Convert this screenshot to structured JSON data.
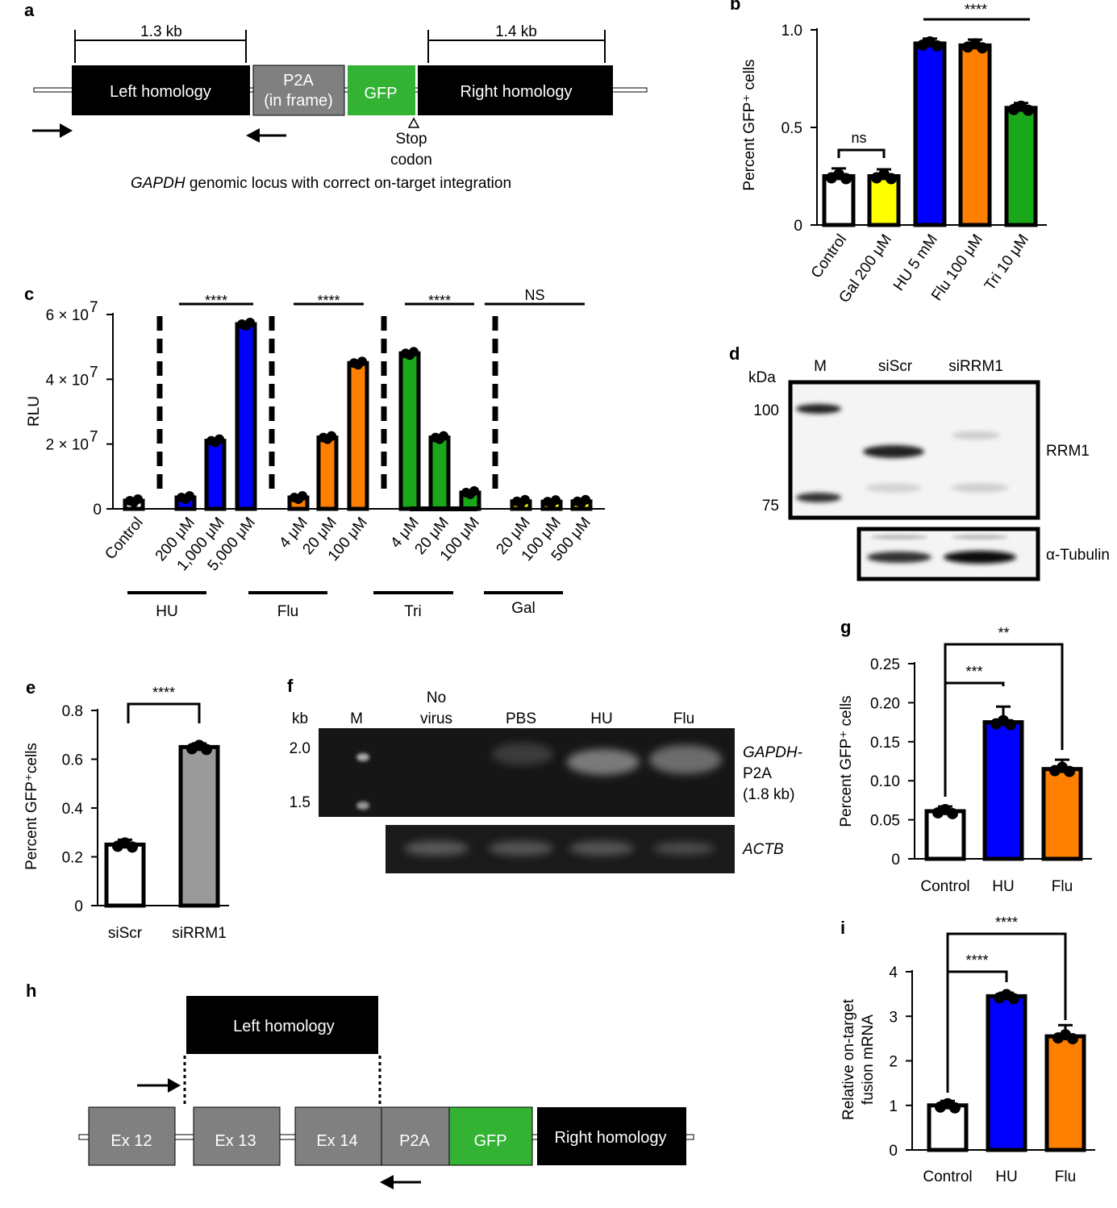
{
  "colors": {
    "white": "#ffffff",
    "yellow": "#ffff00",
    "blue": "#0000ff",
    "orange": "#ff8000",
    "green": "#1aa81a",
    "grey": "#9a9a9a",
    "black": "#000000",
    "box_grey": "#808080",
    "gfp_green": "#33b233"
  },
  "panel_a": {
    "label": "a",
    "left_size": "1.3 kb",
    "right_size": "1.4 kb",
    "left": "Left homology",
    "p2a_1": "P2A",
    "p2a_2": "(in frame)",
    "gfp": "GFP",
    "right": "Right homology",
    "stop_1": "Stop",
    "stop_2": "codon",
    "caption_italic": "GAPDH",
    "caption_rest": " genomic locus with correct on-target integration"
  },
  "panel_d": {
    "label": "d",
    "kda": "kDa",
    "lanes": [
      "M",
      "siScr",
      "siRRM1"
    ],
    "mw": [
      "100",
      "75"
    ],
    "rrm1": "RRM1",
    "tubulin": "α-Tubulin"
  },
  "panel_f": {
    "label": "f",
    "kb": "kb",
    "lanes": [
      "M",
      "No",
      "virus",
      "PBS",
      "HU",
      "Flu"
    ],
    "mw": [
      "2.0",
      "1.5"
    ],
    "band_1": "GAPDH-",
    "band_2": "P2A",
    "band_3": "(1.8 kb)",
    "actb": "ACTB"
  },
  "panel_h": {
    "label": "h",
    "left": "Left homology",
    "ex12": "Ex 12",
    "ex13": "Ex 13",
    "ex14": "Ex 14",
    "p2a": "P2A",
    "gfp": "GFP",
    "right": "Right homology"
  },
  "chart_data": [
    {
      "id": "b",
      "label": "b",
      "type": "bar",
      "ylabel": "Percent GFP⁺ cells",
      "ylim": [
        0,
        1.0
      ],
      "yticks": [
        0,
        0.5,
        1.0
      ],
      "ytick_labels": [
        "0",
        "0.5",
        "1.0"
      ],
      "categories": [
        "Control",
        "Gal 200 μM",
        "HU 5 mM",
        "Flu 100 μM",
        "Tri 10 μM"
      ],
      "values": [
        0.25,
        0.25,
        0.93,
        0.92,
        0.6
      ],
      "errors": [
        0.04,
        0.035,
        0.025,
        0.03,
        0.025
      ],
      "fill": [
        "#ffffff",
        "#ffff00",
        "#0000ff",
        "#ff8000",
        "#1aa81a"
      ],
      "annotations": [
        "ns",
        "****"
      ]
    },
    {
      "id": "c",
      "label": "c",
      "type": "bar",
      "ylabel": "RLU",
      "ylim": [
        0,
        60000000
      ],
      "yticks": [
        0,
        20000000,
        40000000,
        60000000
      ],
      "ytick_labels": [
        "0",
        "2 × 10",
        "4 × 10",
        "6 × 10"
      ],
      "ytick_exp": "7",
      "categories": [
        "Control",
        "200 μM",
        "1,000 μM",
        "5,000 μM",
        "4 μM",
        "20 μM",
        "100 μM",
        "4 μM",
        "20 μM",
        "100 μM",
        "20 μM",
        "100 μM",
        "500 μM"
      ],
      "values": [
        2500000,
        3500000,
        21000000,
        57000000,
        3500000,
        22000000,
        45000000,
        48000000,
        22000000,
        5000000,
        2300000,
        2200000,
        2300000
      ],
      "fill": [
        "#ffffff",
        "#0000ff",
        "#0000ff",
        "#0000ff",
        "#ff8000",
        "#ff8000",
        "#ff8000",
        "#1aa81a",
        "#1aa81a",
        "#1aa81a",
        "#ffff00",
        "#ffff00",
        "#ffff00"
      ],
      "groups": [
        "HU",
        "Flu",
        "Tri",
        "Gal"
      ],
      "annotations": [
        "****",
        "****",
        "****",
        "NS"
      ]
    },
    {
      "id": "e",
      "label": "e",
      "type": "bar",
      "ylabel": "Percent GFP⁺cells",
      "ylim": [
        0,
        0.8
      ],
      "yticks": [
        0,
        0.2,
        0.4,
        0.6,
        0.8
      ],
      "ytick_labels": [
        "0",
        "0.2",
        "0.4",
        "0.6",
        "0.8"
      ],
      "categories": [
        "siScr",
        "siRRM1"
      ],
      "values": [
        0.25,
        0.65
      ],
      "errors": [
        0.02,
        0.015
      ],
      "fill": [
        "#ffffff",
        "#9a9a9a"
      ],
      "annotations": [
        "****"
      ]
    },
    {
      "id": "g",
      "label": "g",
      "type": "bar",
      "ylabel": "Percent GFP⁺ cells",
      "ylim": [
        0,
        0.25
      ],
      "yticks": [
        0,
        0.05,
        0.1,
        0.15,
        0.2,
        0.25
      ],
      "ytick_labels": [
        "0",
        "0.05",
        "0.10",
        "0.15",
        "0.20",
        "0.25"
      ],
      "categories": [
        "Control",
        "HU",
        "Flu"
      ],
      "values": [
        0.061,
        0.175,
        0.115
      ],
      "errors": [
        0.006,
        0.02,
        0.012
      ],
      "fill": [
        "#ffffff",
        "#0000ff",
        "#ff8000"
      ],
      "annotations": [
        "***",
        "**"
      ]
    },
    {
      "id": "i",
      "label": "i",
      "type": "bar",
      "ylabel_1": "Relative on-target",
      "ylabel_2": "fusion mRNA",
      "ylim": [
        0,
        4
      ],
      "yticks": [
        0,
        1,
        2,
        3,
        4
      ],
      "ytick_labels": [
        "0",
        "1",
        "2",
        "3",
        "4"
      ],
      "categories": [
        "Control",
        "HU",
        "Flu"
      ],
      "values": [
        1.0,
        3.45,
        2.55
      ],
      "errors": [
        0.1,
        0.08,
        0.25
      ],
      "fill": [
        "#ffffff",
        "#0000ff",
        "#ff8000"
      ],
      "annotations": [
        "****",
        "****"
      ]
    }
  ]
}
